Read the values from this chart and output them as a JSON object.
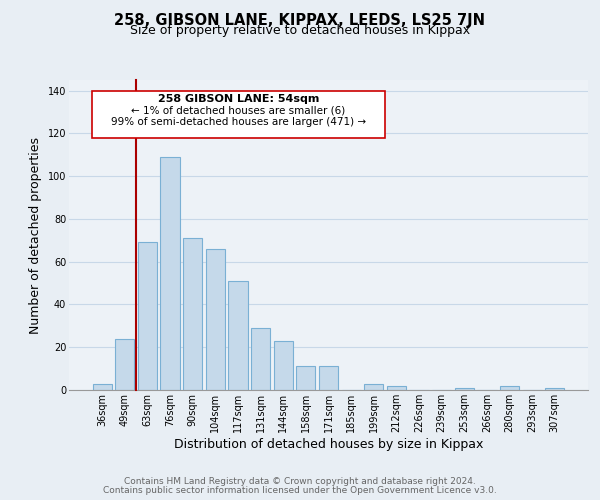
{
  "title": "258, GIBSON LANE, KIPPAX, LEEDS, LS25 7JN",
  "subtitle": "Size of property relative to detached houses in Kippax",
  "xlabel": "Distribution of detached houses by size in Kippax",
  "ylabel": "Number of detached properties",
  "bar_color": "#c5d9ea",
  "bar_edge_color": "#7ab0d4",
  "categories": [
    "36sqm",
    "49sqm",
    "63sqm",
    "76sqm",
    "90sqm",
    "104sqm",
    "117sqm",
    "131sqm",
    "144sqm",
    "158sqm",
    "171sqm",
    "185sqm",
    "199sqm",
    "212sqm",
    "226sqm",
    "239sqm",
    "253sqm",
    "266sqm",
    "280sqm",
    "293sqm",
    "307sqm"
  ],
  "values": [
    3,
    24,
    69,
    109,
    71,
    66,
    51,
    29,
    23,
    11,
    11,
    0,
    3,
    2,
    0,
    0,
    1,
    0,
    2,
    0,
    1
  ],
  "ylim": [
    0,
    145
  ],
  "yticks": [
    0,
    20,
    40,
    60,
    80,
    100,
    120,
    140
  ],
  "annotation_title": "258 GIBSON LANE: 54sqm",
  "annotation_line1": "← 1% of detached houses are smaller (6)",
  "annotation_line2": "99% of semi-detached houses are larger (471) →",
  "annotation_box_color": "#ffffff",
  "annotation_box_edge_color": "#cc0000",
  "property_line_color": "#aa0000",
  "footer_line1": "Contains HM Land Registry data © Crown copyright and database right 2024.",
  "footer_line2": "Contains public sector information licensed under the Open Government Licence v3.0.",
  "background_color": "#e8eef4",
  "plot_bg_color": "#edf2f7",
  "grid_color": "#c8d8e8",
  "title_fontsize": 10.5,
  "subtitle_fontsize": 9,
  "axis_label_fontsize": 9,
  "tick_fontsize": 7,
  "footer_fontsize": 6.5
}
